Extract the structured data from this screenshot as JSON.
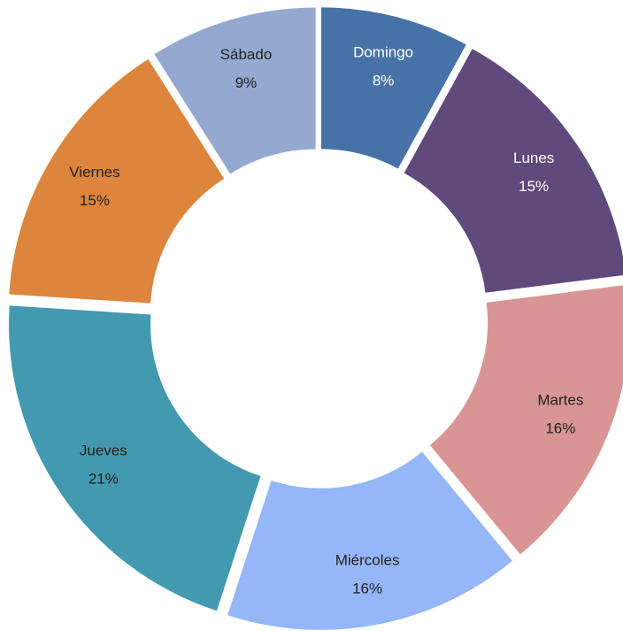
{
  "chart_data": {
    "type": "donut",
    "categories": [
      "Domingo",
      "Lunes",
      "Martes",
      "Miércoles",
      "Jueves",
      "Viernes",
      "Sábado"
    ],
    "values": [
      8,
      15,
      16,
      16,
      21,
      15,
      9
    ],
    "value_labels": [
      "8%",
      "15%",
      "16%",
      "16%",
      "21%",
      "15%",
      "9%"
    ],
    "colors": [
      "#4672a8",
      "#604a7b",
      "#d99594",
      "#95b6f8",
      "#4299b0",
      "#dd853d",
      "#95a9d0"
    ]
  }
}
